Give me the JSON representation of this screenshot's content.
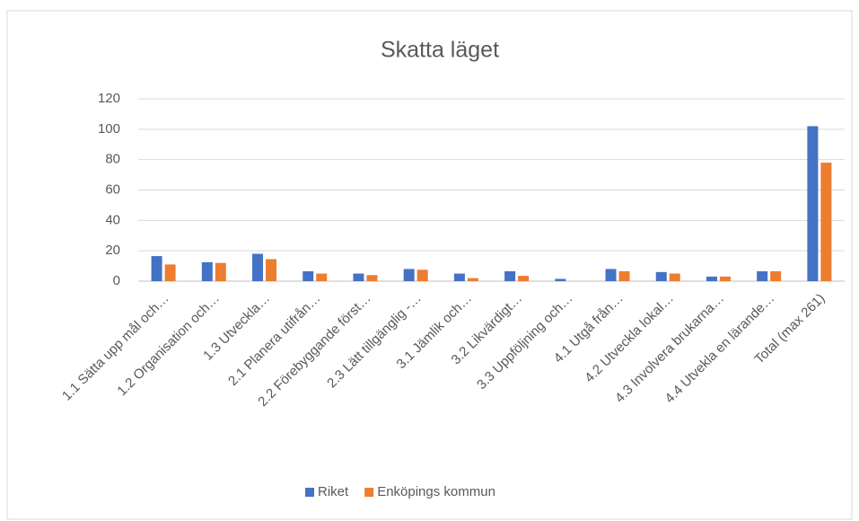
{
  "chart_data": {
    "type": "bar",
    "title": "Skatta läget",
    "categories": [
      "1.1 Sätta upp mål och…",
      "1.2 Organisation och…",
      "1.3 Utveckla…",
      "2.1 Planera utifrån…",
      "2.2 Förebyggande först…",
      "2.3 Lätt tillgänglig -…",
      "3.1 Jämlik och…",
      "3.2 Likvärdigt…",
      "3.3 Uppföljning och…",
      "4.1 Utgå från…",
      "4.2 Utveckla lokal…",
      "4.3 Involvera brukarna…",
      "4.4 Utvekla en lärande…",
      "Total (max 261)"
    ],
    "series": [
      {
        "name": "Riket",
        "color": "#4472c4",
        "values": [
          16.5,
          12.5,
          18,
          6.5,
          5,
          8,
          5,
          6.5,
          1.5,
          8,
          6,
          3,
          6.5,
          102
        ]
      },
      {
        "name": "Enköpings kommun",
        "color": "#ed7d31",
        "values": [
          11,
          12,
          14.5,
          5,
          4,
          7.5,
          2,
          3.5,
          0,
          6.5,
          5,
          3,
          6.5,
          78
        ]
      }
    ],
    "ylim": [
      0,
      120
    ],
    "yticks": [
      0,
      20,
      40,
      60,
      80,
      100,
      120
    ],
    "grid": true,
    "legend": "bottom"
  }
}
